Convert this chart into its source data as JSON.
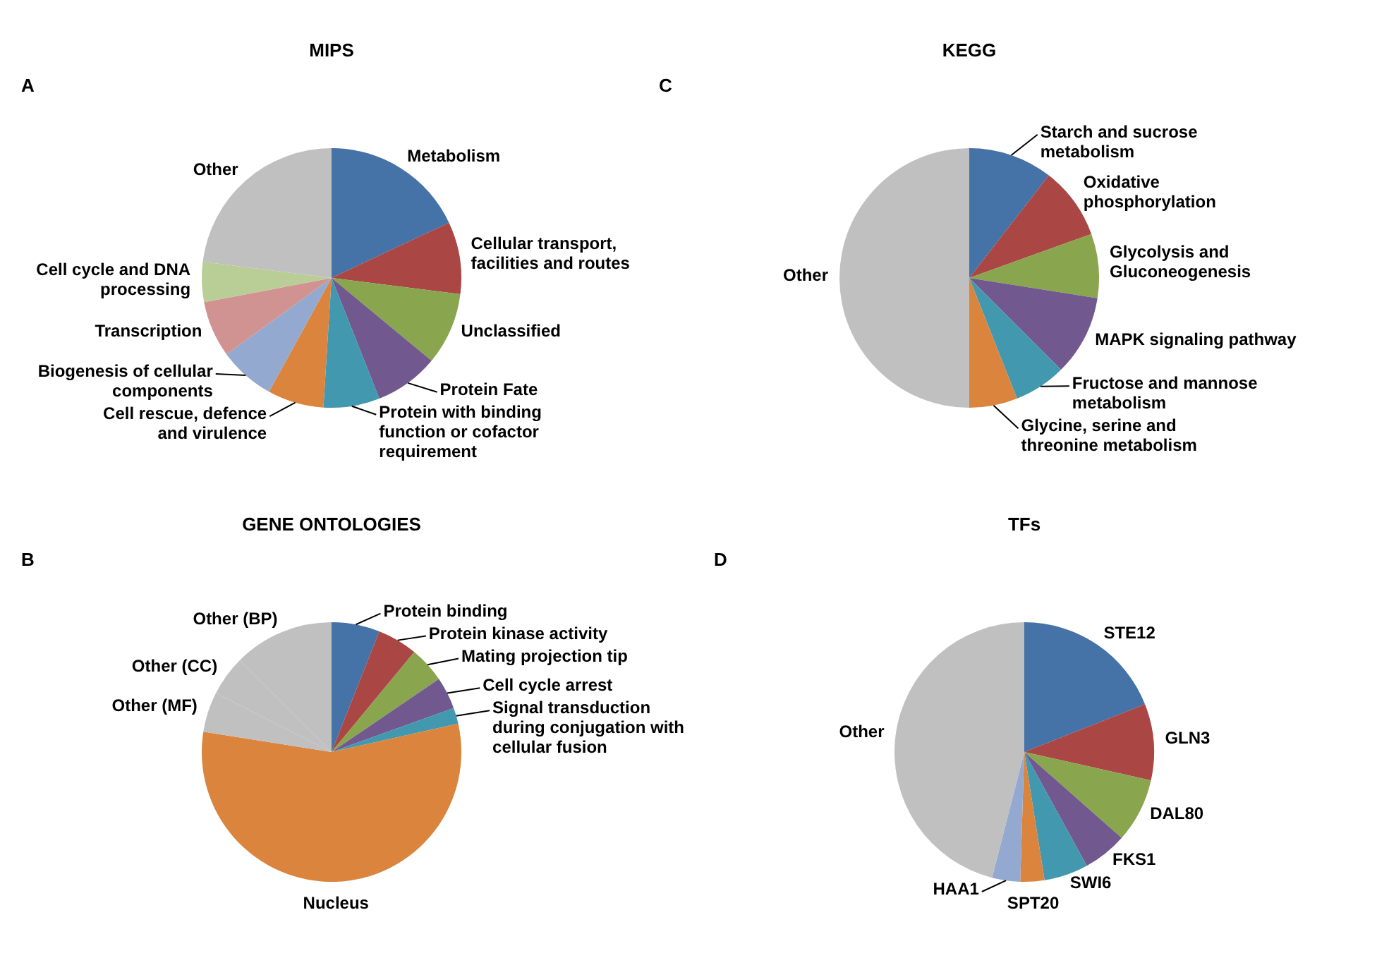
{
  "chart_data": [
    {
      "type": "pie",
      "title": "MIPS",
      "annotations": [
        "A"
      ],
      "categories": [
        "Metabolism",
        "Cellular transport, facilities and routes",
        "Unclassified",
        "Protein Fate",
        "Protein with binding function or cofactor requirement",
        "Cell rescue, defence and virulence",
        "Biogenesis of cellular components",
        "Transcription",
        "Cell cycle and DNA processing",
        "Other"
      ],
      "values": [
        18,
        9,
        9,
        8,
        7,
        7,
        7,
        7,
        5,
        23
      ],
      "colors": [
        "#4572a7",
        "#aa4643",
        "#89a54e",
        "#71588f",
        "#4198af",
        "#db843d",
        "#93a9cf",
        "#d19392",
        "#b9cd96",
        "#c0c0c0"
      ]
    },
    {
      "type": "pie",
      "title": "KEGG",
      "annotations": [
        "C"
      ],
      "categories": [
        "Starch and sucrose metabolism",
        "Oxidative phosphorylation",
        "Glycolysis and Gluconeogenesis",
        "MAPK signaling pathway",
        "Fructose and mannose metabolism",
        "Glycine, serine and threonine metabolism",
        "Other"
      ],
      "values": [
        10.5,
        9,
        8,
        10,
        6.5,
        6,
        50
      ],
      "colors": [
        "#4572a7",
        "#aa4643",
        "#89a54e",
        "#71588f",
        "#4198af",
        "#db843d",
        "#c0c0c0"
      ]
    },
    {
      "type": "pie",
      "title": "GENE ONTOLOGIES",
      "annotations": [
        "B"
      ],
      "categories": [
        "Protein binding",
        "Protein kinase activity",
        "Mating projection tip",
        "Cell cycle arrest",
        "Signal transduction during conjugation with cellular fusion",
        "Nucleus",
        "Other (MF)",
        "Other (CC)",
        "Other (BP)"
      ],
      "values": [
        6,
        5,
        4.5,
        4,
        2,
        56,
        5,
        5,
        12.5
      ],
      "colors": [
        "#4572a7",
        "#aa4643",
        "#89a54e",
        "#71588f",
        "#4198af",
        "#db843d",
        "#c0c0c0",
        "#c0c0c0",
        "#c0c0c0"
      ]
    },
    {
      "type": "pie",
      "title": "TFs",
      "annotations": [
        "D"
      ],
      "categories": [
        "STE12",
        "GLN3",
        "DAL80",
        "FKS1",
        "SWI6",
        "SPT20",
        "HAA1",
        "Other"
      ],
      "values": [
        19,
        9.5,
        8,
        5.5,
        5.5,
        3,
        3.5,
        46
      ],
      "colors": [
        "#4572a7",
        "#aa4643",
        "#89a54e",
        "#71588f",
        "#4198af",
        "#db843d",
        "#93a9cf",
        "#c0c0c0"
      ]
    }
  ]
}
